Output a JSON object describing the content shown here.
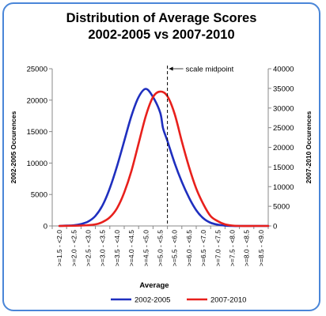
{
  "chart_data": {
    "type": "line",
    "title_line1": "Distribution of Average Scores",
    "title_line2": "2002-2005 vs 2007-2010",
    "xlabel": "Average",
    "ylabel_left": "2002-2005 Occurences",
    "ylabel_right": "2007-2010 Occurences",
    "categories": [
      ">=1.5 - <2.0",
      ">=2.0 - <2.5",
      ">=2.5 - <3.0",
      ">=3.0 - <3.5",
      ">=3.5 - <4.0",
      ">=4.0 - <4.5",
      ">=4.5 - <5.0",
      ">=5.0 - <5.5",
      ">=5.5 - <6.0",
      ">=6.0 - <6.5",
      ">=6.5 - <7.0",
      ">=7.0 - <7.5",
      ">=7.5 - <8.0",
      ">=8.0 - <8.5",
      ">=8.5 - <9.0"
    ],
    "left_axis": {
      "min": 0,
      "max": 25000,
      "ticks": [
        "0",
        "5000",
        "10000",
        "15000",
        "20000",
        "25000"
      ]
    },
    "right_axis": {
      "min": 0,
      "max": 40000,
      "ticks": [
        "0",
        "5000",
        "10000",
        "15000",
        "20000",
        "25000",
        "30000",
        "35000",
        "40000"
      ]
    },
    "series": [
      {
        "name": "2002-2005",
        "axis": "left",
        "color": "#1f2fbf",
        "x": [
          1.75,
          2.0,
          2.25,
          2.5,
          2.75,
          3.0,
          3.25,
          3.5,
          3.75,
          4.0,
          4.25,
          4.5,
          4.75,
          5.0,
          5.25,
          5.35,
          5.5,
          5.75,
          6.0,
          6.25,
          6.5,
          6.75,
          7.0,
          7.25,
          7.5,
          7.75,
          8.0,
          8.5,
          9.0
        ],
        "values": [
          0,
          50,
          100,
          300,
          700,
          1600,
          3300,
          6000,
          9500,
          13500,
          17500,
          20500,
          21800,
          20500,
          18000,
          15500,
          13500,
          10000,
          7000,
          4500,
          2500,
          1200,
          500,
          200,
          50,
          0,
          0,
          0,
          0
        ]
      },
      {
        "name": "2007-2010",
        "axis": "right",
        "color": "#e8201c",
        "x": [
          1.75,
          2.5,
          3.0,
          3.25,
          3.5,
          3.75,
          4.0,
          4.25,
          4.5,
          4.75,
          5.0,
          5.25,
          5.5,
          5.75,
          6.0,
          6.25,
          6.5,
          6.75,
          7.0,
          7.25,
          7.5,
          7.75,
          8.0,
          8.5,
          9.0
        ],
        "values": [
          0,
          100,
          400,
          1000,
          2200,
          4500,
          8500,
          14000,
          21000,
          28000,
          32800,
          34200,
          33000,
          28500,
          21500,
          15000,
          9500,
          5500,
          2500,
          1200,
          400,
          100,
          0,
          0,
          0
        ]
      }
    ],
    "annotation": {
      "label": "scale midpoint",
      "x": 5.5
    },
    "legend_position": "bottom",
    "grid": false
  }
}
